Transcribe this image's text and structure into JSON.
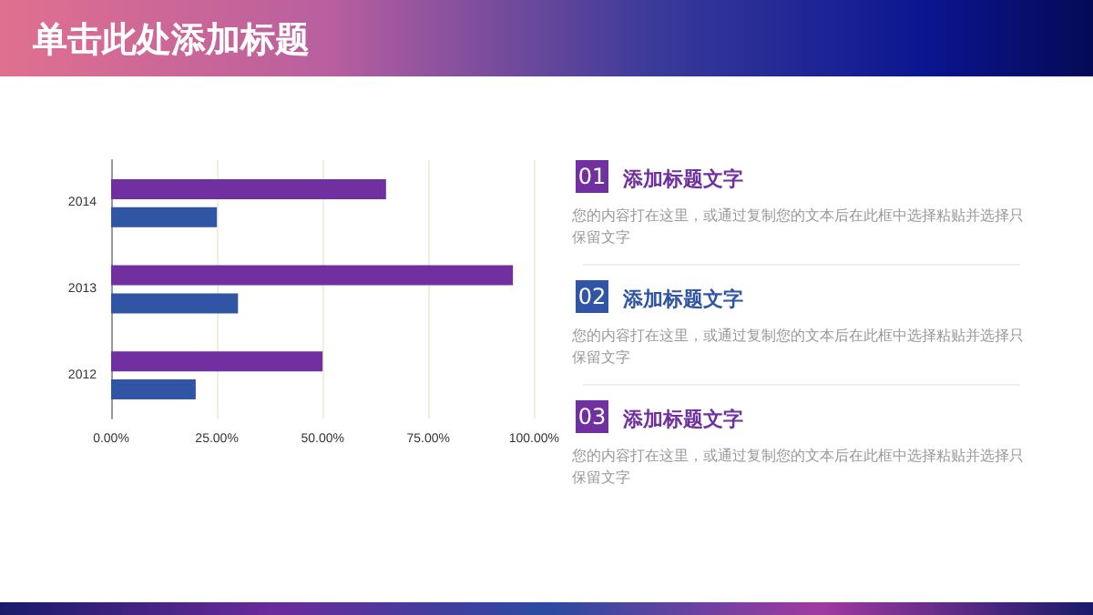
{
  "chart_data": {
    "type": "bar",
    "orientation": "horizontal",
    "title": "单击此处添加标题",
    "categories": [
      "2014",
      "2013",
      "2012"
    ],
    "series": [
      {
        "color": "#7030a0",
        "values": [
          65,
          95,
          50
        ]
      },
      {
        "color": "#2f55a4",
        "values": [
          25,
          30,
          20
        ]
      }
    ],
    "xlim": [
      0,
      100
    ],
    "xticks": [
      {
        "value": 0,
        "label": "0.00%"
      },
      {
        "value": 25,
        "label": "25.00%"
      },
      {
        "value": 50,
        "label": "50.00%"
      },
      {
        "value": 75,
        "label": "75.00%"
      },
      {
        "value": 100,
        "label": "100.00%"
      }
    ],
    "grid": "x",
    "annotations": [
      "01",
      "添加标题文字",
      "您的内容打在这里，或通过复制您的文本后在此框中选择粘贴并选择只保留文字",
      "02",
      "添加标题文字",
      "您的内容打在这里，或通过复制您的文本后在此框中选择粘贴并选择只保留文字",
      "03",
      "添加标题文字",
      "您的内容打在这里，或通过复制您的文本后在此框中选择粘贴并选择只保留文字"
    ]
  }
}
